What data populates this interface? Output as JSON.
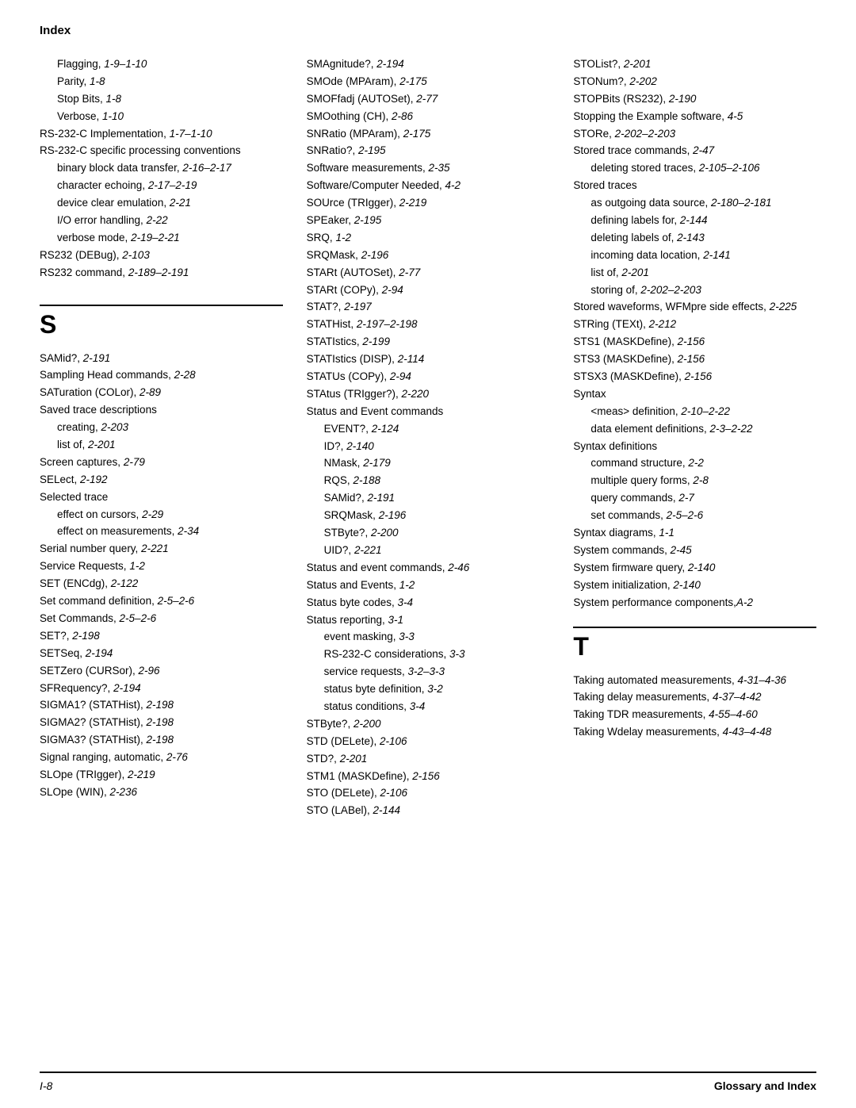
{
  "header": "Index",
  "footer": {
    "left": "I-8",
    "right": "Glossary and Index"
  },
  "sections": {
    "S": "S",
    "T": "T"
  },
  "col1": [
    {
      "t": "Flagging, ",
      "r": "1-9–1-10",
      "cls": "sub"
    },
    {
      "t": "Parity, ",
      "r": "1-8",
      "cls": "sub"
    },
    {
      "t": "Stop Bits, ",
      "r": "1-8",
      "cls": "sub"
    },
    {
      "t": "Verbose, ",
      "r": "1-10",
      "cls": "sub"
    },
    {
      "t": "RS-232-C Implementation, ",
      "r": "1-7–1-10"
    },
    {
      "t": "RS-232-C specific processing conventions",
      "r": ""
    },
    {
      "t": "binary block data transfer, ",
      "r": "2-16–2-17",
      "cls": "sub"
    },
    {
      "t": "character echoing, ",
      "r": "2-17–2-19",
      "cls": "sub"
    },
    {
      "t": "device clear emulation, ",
      "r": "2-21",
      "cls": "sub"
    },
    {
      "t": "I/O error handling, ",
      "r": "2-22",
      "cls": "sub"
    },
    {
      "t": "verbose mode, ",
      "r": "2-19–2-21",
      "cls": "sub"
    },
    {
      "t": "RS232 (DEBug), ",
      "r": "2-103"
    },
    {
      "t": "RS232 command, ",
      "r": "2-189–2-191"
    }
  ],
  "col1s": [
    {
      "t": "SAMid?, ",
      "r": "2-191"
    },
    {
      "t": "Sampling Head commands, ",
      "r": "2-28"
    },
    {
      "t": "SATuration (COLor), ",
      "r": "2-89"
    },
    {
      "t": "Saved trace descriptions",
      "r": ""
    },
    {
      "t": "creating, ",
      "r": "2-203",
      "cls": "sub"
    },
    {
      "t": "list of, ",
      "r": "2-201",
      "cls": "sub"
    },
    {
      "t": "Screen captures, ",
      "r": "2-79"
    },
    {
      "t": "SELect, ",
      "r": "2-192"
    },
    {
      "t": "Selected trace",
      "r": ""
    },
    {
      "t": "effect on cursors, ",
      "r": "2-29",
      "cls": "sub"
    },
    {
      "t": "effect on measurements, ",
      "r": "2-34",
      "cls": "sub"
    },
    {
      "t": "Serial number query, ",
      "r": "2-221"
    },
    {
      "t": "Service Requests, ",
      "r": "1-2"
    },
    {
      "t": "SET (ENCdg), ",
      "r": "2-122"
    },
    {
      "t": "Set command definition, ",
      "r": "2-5–2-6"
    },
    {
      "t": "Set Commands, ",
      "r": "2-5–2-6"
    },
    {
      "t": "SET?, ",
      "r": "2-198"
    },
    {
      "t": "SETSeq, ",
      "r": "2-194"
    },
    {
      "t": "SETZero (CURSor), ",
      "r": "2-96"
    },
    {
      "t": "SFRequency?, ",
      "r": "2-194"
    },
    {
      "t": "SIGMA1? (STATHist), ",
      "r": "2-198"
    },
    {
      "t": "SIGMA2? (STATHist), ",
      "r": "2-198"
    },
    {
      "t": "SIGMA3? (STATHist), ",
      "r": "2-198"
    },
    {
      "t": "Signal ranging, automatic, ",
      "r": "2-76"
    },
    {
      "t": "SLOpe (TRIgger), ",
      "r": "2-219"
    },
    {
      "t": "SLOpe (WIN), ",
      "r": "2-236"
    }
  ],
  "col2": [
    {
      "t": "SMAgnitude?, ",
      "r": "2-194"
    },
    {
      "t": "SMOde (MPAram), ",
      "r": "2-175"
    },
    {
      "t": "SMOFfadj (AUTOSet), ",
      "r": "2-77"
    },
    {
      "t": "SMOothing (CH), ",
      "r": "2-86"
    },
    {
      "t": "SNRatio (MPAram), ",
      "r": "2-175"
    },
    {
      "t": "SNRatio?, ",
      "r": "2-195"
    },
    {
      "t": "Software measurements, ",
      "r": "2-35"
    },
    {
      "t": "Software/Computer Needed, ",
      "r": "4-2"
    },
    {
      "t": "SOUrce (TRIgger), ",
      "r": "2-219"
    },
    {
      "t": "SPEaker, ",
      "r": "2-195"
    },
    {
      "t": "SRQ, ",
      "r": "1-2"
    },
    {
      "t": "SRQMask, ",
      "r": "2-196"
    },
    {
      "t": "STARt (AUTOSet), ",
      "r": "2-77"
    },
    {
      "t": "STARt (COPy), ",
      "r": "2-94"
    },
    {
      "t": "STAT?, ",
      "r": "2-197"
    },
    {
      "t": "STATHist, ",
      "r": "2-197–2-198"
    },
    {
      "t": "STATIstics, ",
      "r": "2-199"
    },
    {
      "t": "STATIstics (DISP), ",
      "r": "2-114"
    },
    {
      "t": "STATUs (COPy), ",
      "r": "2-94"
    },
    {
      "t": "STAtus (TRIgger?), ",
      "r": "2-220"
    },
    {
      "t": "Status and Event commands",
      "r": ""
    },
    {
      "t": "EVENT?, ",
      "r": "2-124",
      "cls": "sub"
    },
    {
      "t": "ID?, ",
      "r": "2-140",
      "cls": "sub"
    },
    {
      "t": "NMask, ",
      "r": "2-179",
      "cls": "sub"
    },
    {
      "t": "RQS, ",
      "r": "2-188",
      "cls": "sub"
    },
    {
      "t": "SAMid?, ",
      "r": "2-191",
      "cls": "sub"
    },
    {
      "t": "SRQMask, ",
      "r": "2-196",
      "cls": "sub"
    },
    {
      "t": "STByte?, ",
      "r": "2-200",
      "cls": "sub"
    },
    {
      "t": "UID?, ",
      "r": "2-221",
      "cls": "sub"
    },
    {
      "t": "Status and event commands, ",
      "r": "2-46"
    },
    {
      "t": "Status and Events, ",
      "r": "1-2"
    },
    {
      "t": "Status byte codes, ",
      "r": "3-4"
    },
    {
      "t": "Status reporting, ",
      "r": "3-1"
    },
    {
      "t": "event masking, ",
      "r": "3-3",
      "cls": "sub"
    },
    {
      "t": "RS-232-C considerations, ",
      "r": "3-3",
      "cls": "sub"
    },
    {
      "t": "service requests, ",
      "r": "3-2–3-3",
      "cls": "sub"
    },
    {
      "t": "status byte definition, ",
      "r": "3-2",
      "cls": "sub"
    },
    {
      "t": "status conditions, ",
      "r": "3-4",
      "cls": "sub"
    },
    {
      "t": "STByte?, ",
      "r": "2-200"
    },
    {
      "t": "STD (DELete), ",
      "r": "2-106"
    },
    {
      "t": "STD?, ",
      "r": "2-201"
    },
    {
      "t": "STM1 (MASKDefine), ",
      "r": "2-156"
    },
    {
      "t": "STO (DELete), ",
      "r": "2-106"
    },
    {
      "t": "STO (LABel), ",
      "r": "2-144"
    }
  ],
  "col3": [
    {
      "t": "STOList?, ",
      "r": "2-201"
    },
    {
      "t": "STONum?, ",
      "r": "2-202"
    },
    {
      "t": "STOPBits (RS232), ",
      "r": "2-190"
    },
    {
      "t": "Stopping the Example software, ",
      "r": "4-5"
    },
    {
      "t": "STORe, ",
      "r": "2-202–2-203"
    },
    {
      "t": "Stored trace commands, ",
      "r": "2-47"
    },
    {
      "t": "deleting stored traces, ",
      "r": "2-105–2-106",
      "cls": "sub"
    },
    {
      "t": "Stored traces",
      "r": ""
    },
    {
      "t": "as outgoing data source, ",
      "r": "2-180–2-181",
      "cls": "sub"
    },
    {
      "t": "defining labels for, ",
      "r": "2-144",
      "cls": "sub"
    },
    {
      "t": "deleting labels of, ",
      "r": "2-143",
      "cls": "sub"
    },
    {
      "t": "incoming data location, ",
      "r": "2-141",
      "cls": "sub"
    },
    {
      "t": "list of, ",
      "r": "2-201",
      "cls": "sub"
    },
    {
      "t": "storing of, ",
      "r": "2-202–2-203",
      "cls": "sub"
    },
    {
      "t": "Stored waveforms, WFMpre side effects, ",
      "r": "2-225"
    },
    {
      "t": "STRing (TEXt), ",
      "r": "2-212"
    },
    {
      "t": "STS1 (MASKDefine), ",
      "r": "2-156"
    },
    {
      "t": "STS3 (MASKDefine), ",
      "r": "2-156"
    },
    {
      "t": "STSX3 (MASKDefine), ",
      "r": "2-156"
    },
    {
      "t": "Syntax",
      "r": ""
    },
    {
      "t": "<meas> definition, ",
      "r": "2-10–2-22",
      "cls": "sub"
    },
    {
      "t": "data element definitions, ",
      "r": "2-3–2-22",
      "cls": "sub"
    },
    {
      "t": "Syntax definitions",
      "r": ""
    },
    {
      "t": "command structure, ",
      "r": "2-2",
      "cls": "sub"
    },
    {
      "t": "multiple query forms, ",
      "r": "2-8",
      "cls": "sub"
    },
    {
      "t": "query commands, ",
      "r": "2-7",
      "cls": "sub"
    },
    {
      "t": "set commands, ",
      "r": "2-5–2-6",
      "cls": "sub"
    },
    {
      "t": "Syntax diagrams, ",
      "r": "1-1"
    },
    {
      "t": "System commands, ",
      "r": "2-45"
    },
    {
      "t": "System firmware query, ",
      "r": "2-140"
    },
    {
      "t": "System initialization, ",
      "r": "2-140"
    },
    {
      "t": "System performance components,",
      "r": "A-2"
    }
  ],
  "col3t": [
    {
      "t": "Taking automated measurements, ",
      "r": "4-31–4-36"
    },
    {
      "t": "Taking delay measurements, ",
      "r": "4-37–4-42"
    },
    {
      "t": "Taking TDR measurements, ",
      "r": "4-55–4-60"
    },
    {
      "t": "Taking Wdelay measurements, ",
      "r": "4-43–4-48"
    }
  ]
}
